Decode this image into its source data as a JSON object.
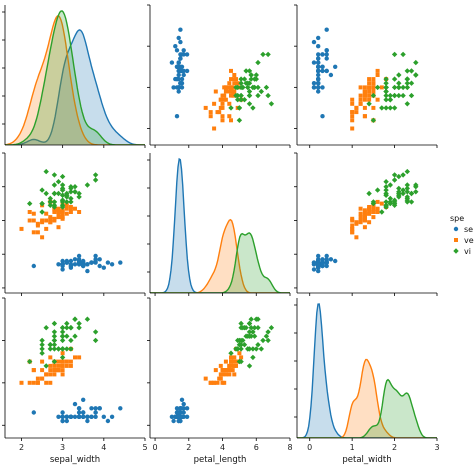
{
  "chart_data": {
    "type": "scatter",
    "kind": "pairplot",
    "variables": [
      "sepal_width",
      "petal_length",
      "petal_width"
    ],
    "diagonal": "kde",
    "legend": {
      "title": "spe",
      "placement": "right",
      "entries": [
        {
          "label": "se",
          "color": "#1f77b4",
          "marker": "circle"
        },
        {
          "label": "ve",
          "color": "#ff7f0e",
          "marker": "square"
        },
        {
          "label": "vi",
          "color": "#2ca02c",
          "marker": "diamond"
        }
      ]
    },
    "axes": {
      "sepal_width": {
        "label": "sepal_width",
        "range": [
          1.6,
          5.0
        ],
        "ticks": [
          "2",
          "3",
          "4",
          "5"
        ]
      },
      "petal_length": {
        "label": "petal_length",
        "range": [
          -0.3,
          8.0
        ],
        "ticks": [
          "0",
          "2",
          "4",
          "6",
          "8"
        ]
      },
      "petal_width": {
        "label": "petal_width",
        "range": [
          -0.3,
          3.0
        ],
        "ticks": [
          "0",
          "1",
          "2",
          "3"
        ]
      }
    },
    "series": [
      {
        "color": "#1f77b4",
        "marker": "circle",
        "sepal_width": [
          3.5,
          3.0,
          3.2,
          3.1,
          3.6,
          3.9,
          3.4,
          3.4,
          2.9,
          3.1,
          3.7,
          3.4,
          3.0,
          3.0,
          4.0,
          4.4,
          3.9,
          3.5,
          3.8,
          3.8,
          3.4,
          3.7,
          3.6,
          3.3,
          3.4,
          3.0,
          3.4,
          3.5,
          3.4,
          3.2,
          3.1,
          3.4,
          4.1,
          4.2,
          3.1,
          3.2,
          3.5,
          3.6,
          3.0,
          3.4,
          3.5,
          2.3,
          3.2,
          3.5,
          3.8,
          3.0,
          3.8,
          3.2,
          3.7,
          3.3
        ],
        "petal_length": [
          1.4,
          1.4,
          1.3,
          1.5,
          1.4,
          1.7,
          1.4,
          1.5,
          1.4,
          1.5,
          1.5,
          1.6,
          1.4,
          1.1,
          1.2,
          1.5,
          1.3,
          1.4,
          1.7,
          1.5,
          1.7,
          1.5,
          1.0,
          1.7,
          1.9,
          1.6,
          1.6,
          1.5,
          1.4,
          1.6,
          1.6,
          1.5,
          1.5,
          1.4,
          1.5,
          1.2,
          1.3,
          1.4,
          1.3,
          1.5,
          1.3,
          1.3,
          1.3,
          1.6,
          1.9,
          1.4,
          1.6,
          1.4,
          1.5,
          1.4
        ],
        "petal_width": [
          0.2,
          0.2,
          0.2,
          0.2,
          0.2,
          0.4,
          0.3,
          0.2,
          0.2,
          0.1,
          0.2,
          0.2,
          0.1,
          0.1,
          0.2,
          0.4,
          0.4,
          0.3,
          0.3,
          0.3,
          0.2,
          0.4,
          0.2,
          0.5,
          0.2,
          0.2,
          0.4,
          0.2,
          0.2,
          0.2,
          0.2,
          0.4,
          0.1,
          0.2,
          0.2,
          0.2,
          0.2,
          0.1,
          0.2,
          0.2,
          0.3,
          0.3,
          0.2,
          0.6,
          0.4,
          0.3,
          0.2,
          0.2,
          0.2,
          0.2
        ]
      },
      {
        "color": "#ff7f0e",
        "marker": "square",
        "sepal_width": [
          3.2,
          3.2,
          3.1,
          2.3,
          2.8,
          2.8,
          3.3,
          2.4,
          2.9,
          2.7,
          2.0,
          3.0,
          2.2,
          2.9,
          2.9,
          3.1,
          3.0,
          2.7,
          2.2,
          2.5,
          3.2,
          2.8,
          2.5,
          2.8,
          2.9,
          3.0,
          2.8,
          3.0,
          2.9,
          2.6,
          2.4,
          2.4,
          2.7,
          2.7,
          3.0,
          3.4,
          3.1,
          2.3,
          3.0,
          2.5,
          2.6,
          3.0,
          2.6,
          2.3,
          2.7,
          3.0,
          2.9,
          2.9,
          2.5,
          2.8
        ],
        "petal_length": [
          4.7,
          4.5,
          4.9,
          4.0,
          4.6,
          4.5,
          4.7,
          3.3,
          4.6,
          3.9,
          3.5,
          4.2,
          4.0,
          4.7,
          3.6,
          4.4,
          4.5,
          4.1,
          4.5,
          3.9,
          4.8,
          4.0,
          4.9,
          4.7,
          4.3,
          4.4,
          4.8,
          5.0,
          4.5,
          3.5,
          3.8,
          3.7,
          3.9,
          5.1,
          4.5,
          4.5,
          4.7,
          4.4,
          4.1,
          4.0,
          4.4,
          4.6,
          4.0,
          3.3,
          4.2,
          4.2,
          4.2,
          4.3,
          3.0,
          4.1
        ],
        "petal_width": [
          1.4,
          1.5,
          1.5,
          1.3,
          1.5,
          1.3,
          1.6,
          1.0,
          1.3,
          1.4,
          1.0,
          1.5,
          1.0,
          1.4,
          1.3,
          1.4,
          1.5,
          1.0,
          1.5,
          1.1,
          1.8,
          1.3,
          1.5,
          1.2,
          1.3,
          1.4,
          1.4,
          1.7,
          1.5,
          1.0,
          1.1,
          1.0,
          1.2,
          1.6,
          1.5,
          1.6,
          1.5,
          1.3,
          1.3,
          1.3,
          1.2,
          1.4,
          1.2,
          1.0,
          1.3,
          1.2,
          1.3,
          1.3,
          1.1,
          1.3
        ]
      },
      {
        "color": "#2ca02c",
        "marker": "diamond",
        "sepal_width": [
          3.3,
          2.7,
          3.0,
          2.9,
          3.0,
          3.0,
          2.5,
          2.9,
          2.5,
          3.6,
          3.2,
          2.7,
          3.0,
          2.5,
          2.8,
          3.2,
          3.0,
          3.8,
          2.6,
          2.2,
          3.2,
          2.8,
          2.8,
          2.7,
          3.3,
          3.2,
          2.8,
          3.0,
          2.8,
          3.0,
          2.8,
          3.8,
          2.8,
          2.8,
          2.6,
          3.0,
          3.4,
          3.1,
          3.0,
          3.1,
          3.1,
          3.1,
          2.7,
          3.2,
          3.3,
          3.0,
          2.5,
          3.0,
          3.4,
          3.0
        ],
        "petal_length": [
          6.0,
          5.1,
          5.9,
          5.6,
          5.8,
          6.6,
          4.5,
          6.3,
          5.8,
          6.1,
          5.1,
          5.3,
          5.5,
          5.0,
          5.1,
          5.3,
          5.5,
          6.7,
          6.9,
          5.0,
          5.7,
          4.9,
          6.7,
          4.9,
          5.7,
          6.0,
          4.8,
          4.9,
          5.6,
          5.8,
          6.1,
          6.4,
          5.6,
          5.1,
          5.6,
          6.1,
          5.6,
          5.5,
          4.8,
          5.4,
          5.6,
          5.1,
          5.1,
          5.9,
          5.7,
          5.2,
          5.0,
          5.2,
          5.4,
          5.1
        ],
        "petal_width": [
          2.5,
          1.9,
          2.1,
          1.8,
          2.2,
          2.1,
          1.7,
          1.8,
          1.8,
          2.5,
          2.0,
          1.9,
          2.1,
          2.0,
          2.4,
          2.3,
          1.8,
          2.2,
          2.3,
          1.5,
          2.3,
          2.0,
          2.0,
          1.8,
          2.1,
          1.8,
          1.8,
          1.8,
          2.1,
          1.6,
          1.9,
          2.0,
          2.2,
          1.5,
          1.4,
          2.3,
          2.4,
          1.8,
          1.8,
          2.1,
          2.4,
          2.3,
          1.9,
          2.3,
          2.5,
          2.3,
          1.9,
          2.0,
          2.3,
          1.8
        ]
      }
    ]
  }
}
